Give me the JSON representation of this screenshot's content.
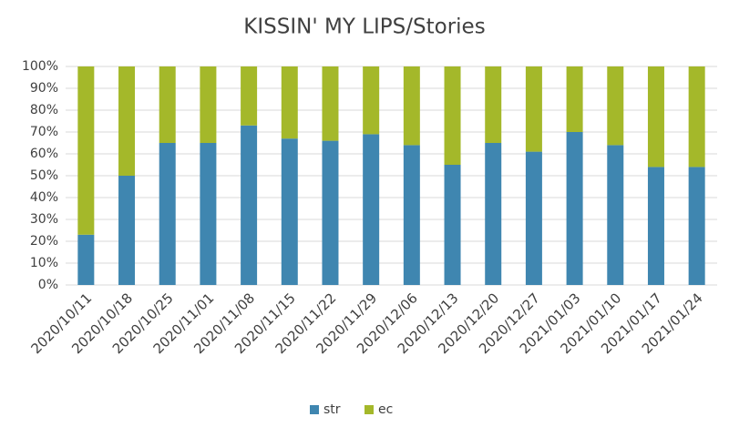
{
  "chart_data": {
    "type": "stacked_bar_100",
    "title": "KISSIN' MY LIPS/Stories",
    "categories": [
      "2020/10/11",
      "2020/10/18",
      "2020/10/25",
      "2020/11/01",
      "2020/11/08",
      "2020/11/15",
      "2020/11/22",
      "2020/11/29",
      "2020/12/06",
      "2020/12/13",
      "2020/12/20",
      "2020/12/27",
      "2021/01/03",
      "2021/01/10",
      "2021/01/17",
      "2021/01/24"
    ],
    "series": [
      {
        "name": "str",
        "color": "#3f86b0",
        "values": [
          23,
          50,
          65,
          65,
          73,
          67,
          66,
          69,
          64,
          55,
          65,
          61,
          70,
          64,
          54,
          54
        ]
      },
      {
        "name": "ec",
        "color": "#a4b82a",
        "values": [
          77,
          50,
          35,
          35,
          27,
          33,
          34,
          31,
          36,
          45,
          35,
          39,
          30,
          36,
          46,
          46
        ]
      }
    ],
    "ylim": [
      0,
      100
    ],
    "yticks": [
      {
        "value": 0,
        "label": "0%"
      },
      {
        "value": 10,
        "label": "10%"
      },
      {
        "value": 20,
        "label": "20%"
      },
      {
        "value": 30,
        "label": "30%"
      },
      {
        "value": 40,
        "label": "40%"
      },
      {
        "value": 50,
        "label": "50%"
      },
      {
        "value": 60,
        "label": "60%"
      },
      {
        "value": 70,
        "label": "70%"
      },
      {
        "value": 80,
        "label": "80%"
      },
      {
        "value": 90,
        "label": "90%"
      },
      {
        "value": 100,
        "label": "100%"
      }
    ],
    "grid": true,
    "legend": "bottom"
  }
}
